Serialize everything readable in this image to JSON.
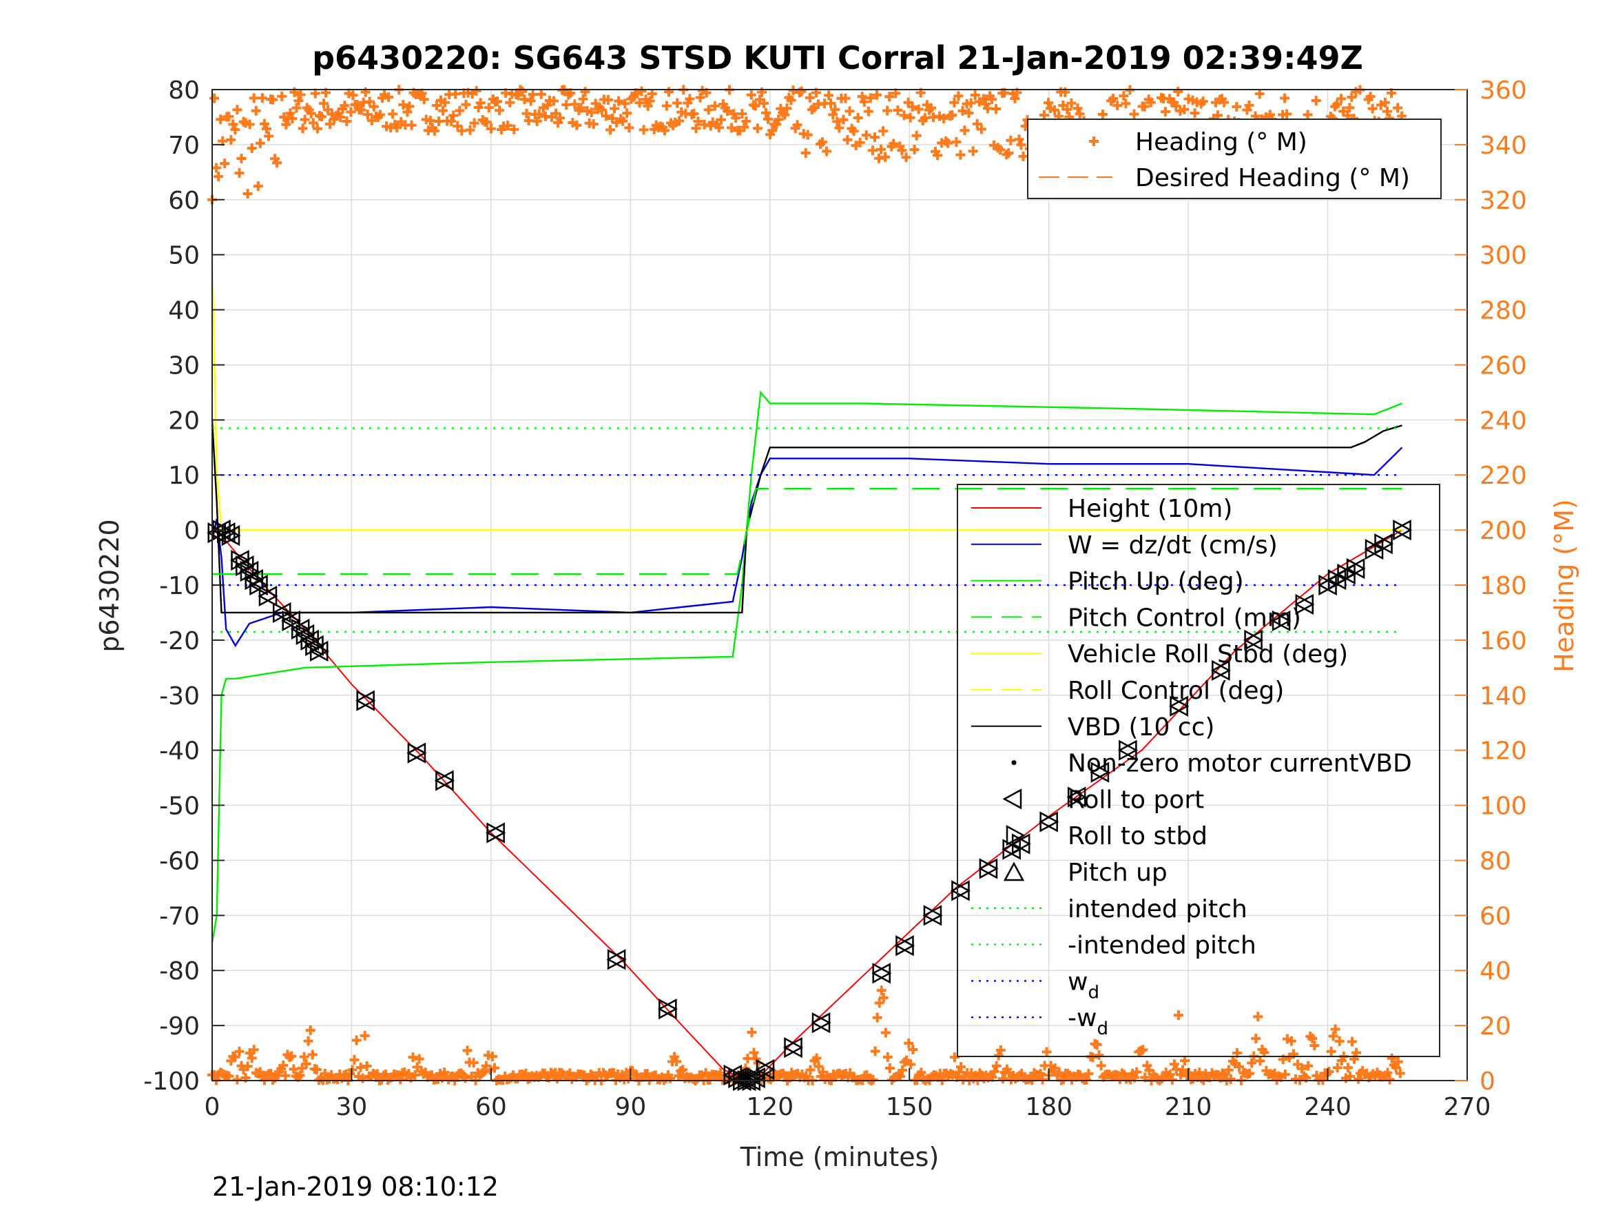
{
  "chart_data": {
    "type": "line",
    "title": "p6430220: SG643 STSD KUTI Corral 21-Jan-2019 02:39:49Z",
    "xlabel": "Time (minutes)",
    "ylabel": "p6430220",
    "y2label": "Heading (°M)",
    "footer": "21-Jan-2019 08:10:12",
    "xlim": [
      0,
      270
    ],
    "ylim": [
      -100,
      80
    ],
    "y2lim": [
      0,
      360
    ],
    "xticks": [
      0,
      30,
      60,
      90,
      120,
      150,
      180,
      210,
      240,
      270
    ],
    "yticks": [
      -100,
      -90,
      -80,
      -70,
      -60,
      -50,
      -40,
      -30,
      -20,
      -10,
      0,
      10,
      20,
      30,
      40,
      50,
      60,
      70,
      80
    ],
    "y2ticks": [
      0,
      20,
      40,
      60,
      80,
      100,
      120,
      140,
      160,
      180,
      200,
      220,
      240,
      260,
      280,
      300,
      320,
      340,
      360
    ],
    "grid": true,
    "colors": {
      "heading": "#ff7a1a",
      "height": "#ff0000",
      "w": "#0000dd",
      "pitch": "#00ee00",
      "roll": "#ffff00",
      "vbd": "#000000",
      "wd": "#0000ff"
    },
    "legend_top": {
      "placement": "top-right",
      "entries": [
        {
          "label": "Heading (° M)",
          "style": "plus-marker"
        },
        {
          "label": "Desired Heading (° M)",
          "style": "dashed-line"
        }
      ]
    },
    "legend_main": {
      "placement": "right",
      "entries": [
        {
          "label": "Height (10m)",
          "style": "line",
          "color": "#ff0000"
        },
        {
          "label": "W = dz/dt (cm/s)",
          "style": "line",
          "color": "#0000dd"
        },
        {
          "label": "Pitch Up (deg)",
          "style": "line",
          "color": "#00ee00"
        },
        {
          "label": "Pitch Control (mm)",
          "style": "dashed",
          "color": "#00ee00"
        },
        {
          "label": "Vehicle Roll Stbd (deg)",
          "style": "line",
          "color": "#ffff00"
        },
        {
          "label": "Roll Control (deg)",
          "style": "dashed",
          "color": "#ffff00"
        },
        {
          "label": "VBD (10 cc)",
          "style": "line",
          "color": "#000000"
        },
        {
          "label": "Non-zero motor currentVBD",
          "style": "dot",
          "color": "#000000"
        },
        {
          "label": "Roll to port",
          "style": "tri-left",
          "color": "#000000"
        },
        {
          "label": "Roll to stbd",
          "style": "tri-right",
          "color": "#000000"
        },
        {
          "label": "Pitch up",
          "style": "tri-up",
          "color": "#000000"
        },
        {
          "label": "intended pitch",
          "style": "dotted",
          "color": "#00ee00"
        },
        {
          "label": "-intended pitch",
          "style": "dotted",
          "color": "#00ee00"
        },
        {
          "label": "w",
          "sub": "d",
          "style": "dotted",
          "color": "#0000ff"
        },
        {
          "label": "-w",
          "sub": "d",
          "style": "dotted",
          "color": "#0000ff"
        }
      ]
    },
    "series": [
      {
        "name": "Height (10m)",
        "x": [
          0,
          2,
          10,
          20,
          30,
          45,
          60,
          88,
          100,
          110,
          115,
          117,
          125,
          140,
          160,
          180,
          200,
          220,
          240,
          256
        ],
        "y": [
          0,
          -1,
          -9,
          -18,
          -28,
          -41,
          -55,
          -78,
          -89,
          -98,
          -100,
          -100,
          -93,
          -81,
          -65,
          -52,
          -40,
          -22,
          -8,
          0
        ]
      },
      {
        "name": "W = dz/dt (cm/s)",
        "x": [
          0,
          1,
          2,
          3,
          5,
          8,
          15,
          30,
          60,
          90,
          112,
          114,
          116,
          118,
          120,
          125,
          150,
          180,
          210,
          230,
          250,
          256
        ],
        "y": [
          -2,
          2,
          -5,
          -18,
          -21,
          -17,
          -15,
          -15,
          -14,
          -15,
          -13,
          -5,
          5,
          10,
          13,
          13,
          13,
          12,
          12,
          11,
          10,
          15
        ]
      },
      {
        "name": "Pitch Up (deg)",
        "x": [
          0,
          1,
          2,
          3,
          5,
          20,
          60,
          112,
          114,
          116,
          118,
          120,
          140,
          200,
          250,
          256
        ],
        "y": [
          -75,
          -70,
          -30,
          -27,
          -27,
          -25,
          -24,
          -23,
          -10,
          10,
          25,
          23,
          23,
          22,
          21,
          23
        ]
      },
      {
        "name": "VBD (10 cc)",
        "x": [
          0,
          1,
          2,
          114,
          115,
          118,
          120,
          200,
          245,
          248,
          252,
          256
        ],
        "y": [
          20,
          5,
          -15,
          -15,
          0,
          10,
          15,
          15,
          15,
          16,
          18,
          19
        ]
      },
      {
        "name": "Vehicle Roll Stbd (deg)",
        "x": [
          0,
          1,
          2,
          5,
          20,
          60,
          100,
          113,
          116,
          120,
          160,
          200,
          245,
          256
        ],
        "y": [
          50,
          10,
          0,
          0,
          0,
          0,
          0,
          0,
          0,
          0,
          0,
          0,
          0,
          0
        ]
      },
      {
        "name": "intended pitch",
        "x": [
          0,
          256
        ],
        "y": [
          18.5,
          18.5
        ]
      },
      {
        "name": "-intended pitch",
        "x": [
          0,
          256
        ],
        "y": [
          -18.5,
          -18.5
        ]
      },
      {
        "name": "wd",
        "x": [
          0,
          256
        ],
        "y": [
          10,
          10
        ]
      },
      {
        "name": "-wd",
        "x": [
          0,
          256
        ],
        "y": [
          -10,
          -10
        ]
      },
      {
        "name": "Pitch Control (mm)",
        "x": [
          0,
          113,
          117,
          256
        ],
        "y": [
          -8,
          -8,
          7.5,
          7.5
        ]
      }
    ],
    "markers": {
      "x": [
        1,
        2,
        3,
        4,
        6,
        7,
        8,
        9,
        10,
        12,
        15,
        17,
        19,
        20,
        21,
        22,
        23,
        33,
        44,
        50,
        61,
        87,
        98,
        112,
        113,
        114,
        115,
        116,
        117,
        119,
        125,
        131,
        144,
        149,
        155,
        161,
        167,
        172,
        174,
        180,
        186,
        191,
        197,
        208,
        217,
        224,
        230,
        235,
        240,
        242,
        244,
        246,
        250,
        252,
        256
      ],
      "y": [
        -0.5,
        0,
        -0.5,
        -1,
        -5.5,
        -6.5,
        -7.5,
        -9,
        -10,
        -12,
        -15,
        -16.5,
        -18,
        -19,
        -20,
        -21,
        -22,
        -31,
        -40.5,
        -45.5,
        -55,
        -78,
        -87,
        -99,
        -99.5,
        -100,
        -100,
        -100,
        -99.5,
        -98,
        -94,
        -89.5,
        -80.5,
        -75.5,
        -70,
        -65.5,
        -61.5,
        -58,
        -57,
        -53,
        -48.5,
        -44,
        -40,
        -32,
        -25.5,
        -20,
        -16.5,
        -13.5,
        -10,
        -9,
        -8,
        -7,
        -3.5,
        -2.5,
        0
      ]
    },
    "heading": {
      "desired": 360,
      "bands": [
        {
          "x0": 0,
          "x1": 14,
          "lo": 320,
          "hi": 360
        },
        {
          "x0": 15,
          "x1": 115,
          "lo": 345,
          "hi": 360
        },
        {
          "x0": 116,
          "x1": 256,
          "lo": 335,
          "hi": 360
        },
        {
          "x0": 0,
          "x1": 256,
          "lo": 0,
          "hi": 25
        }
      ],
      "peaks": [
        {
          "x": 5,
          "v": 20
        },
        {
          "x": 9,
          "v": 18
        },
        {
          "x": 16,
          "v": 28
        },
        {
          "x": 21,
          "v": 20
        },
        {
          "x": 32,
          "v": 27
        },
        {
          "x": 44,
          "v": 15
        },
        {
          "x": 55,
          "v": 18
        },
        {
          "x": 60,
          "v": 15
        },
        {
          "x": 70,
          "v": 2
        },
        {
          "x": 90,
          "v": 12
        },
        {
          "x": 100,
          "v": 13
        },
        {
          "x": 116,
          "v": 20
        },
        {
          "x": 130,
          "v": 17
        },
        {
          "x": 144,
          "v": 40
        },
        {
          "x": 150,
          "v": 20
        },
        {
          "x": 160,
          "v": 15
        },
        {
          "x": 170,
          "v": 15
        },
        {
          "x": 180,
          "v": 15
        },
        {
          "x": 190,
          "v": 17
        },
        {
          "x": 200,
          "v": 17
        },
        {
          "x": 208,
          "v": 26
        },
        {
          "x": 220,
          "v": 18
        },
        {
          "x": 225,
          "v": 28
        },
        {
          "x": 232,
          "v": 30
        },
        {
          "x": 236,
          "v": 32
        },
        {
          "x": 242,
          "v": 26
        },
        {
          "x": 246,
          "v": 22
        },
        {
          "x": 254,
          "v": 18
        }
      ]
    }
  }
}
